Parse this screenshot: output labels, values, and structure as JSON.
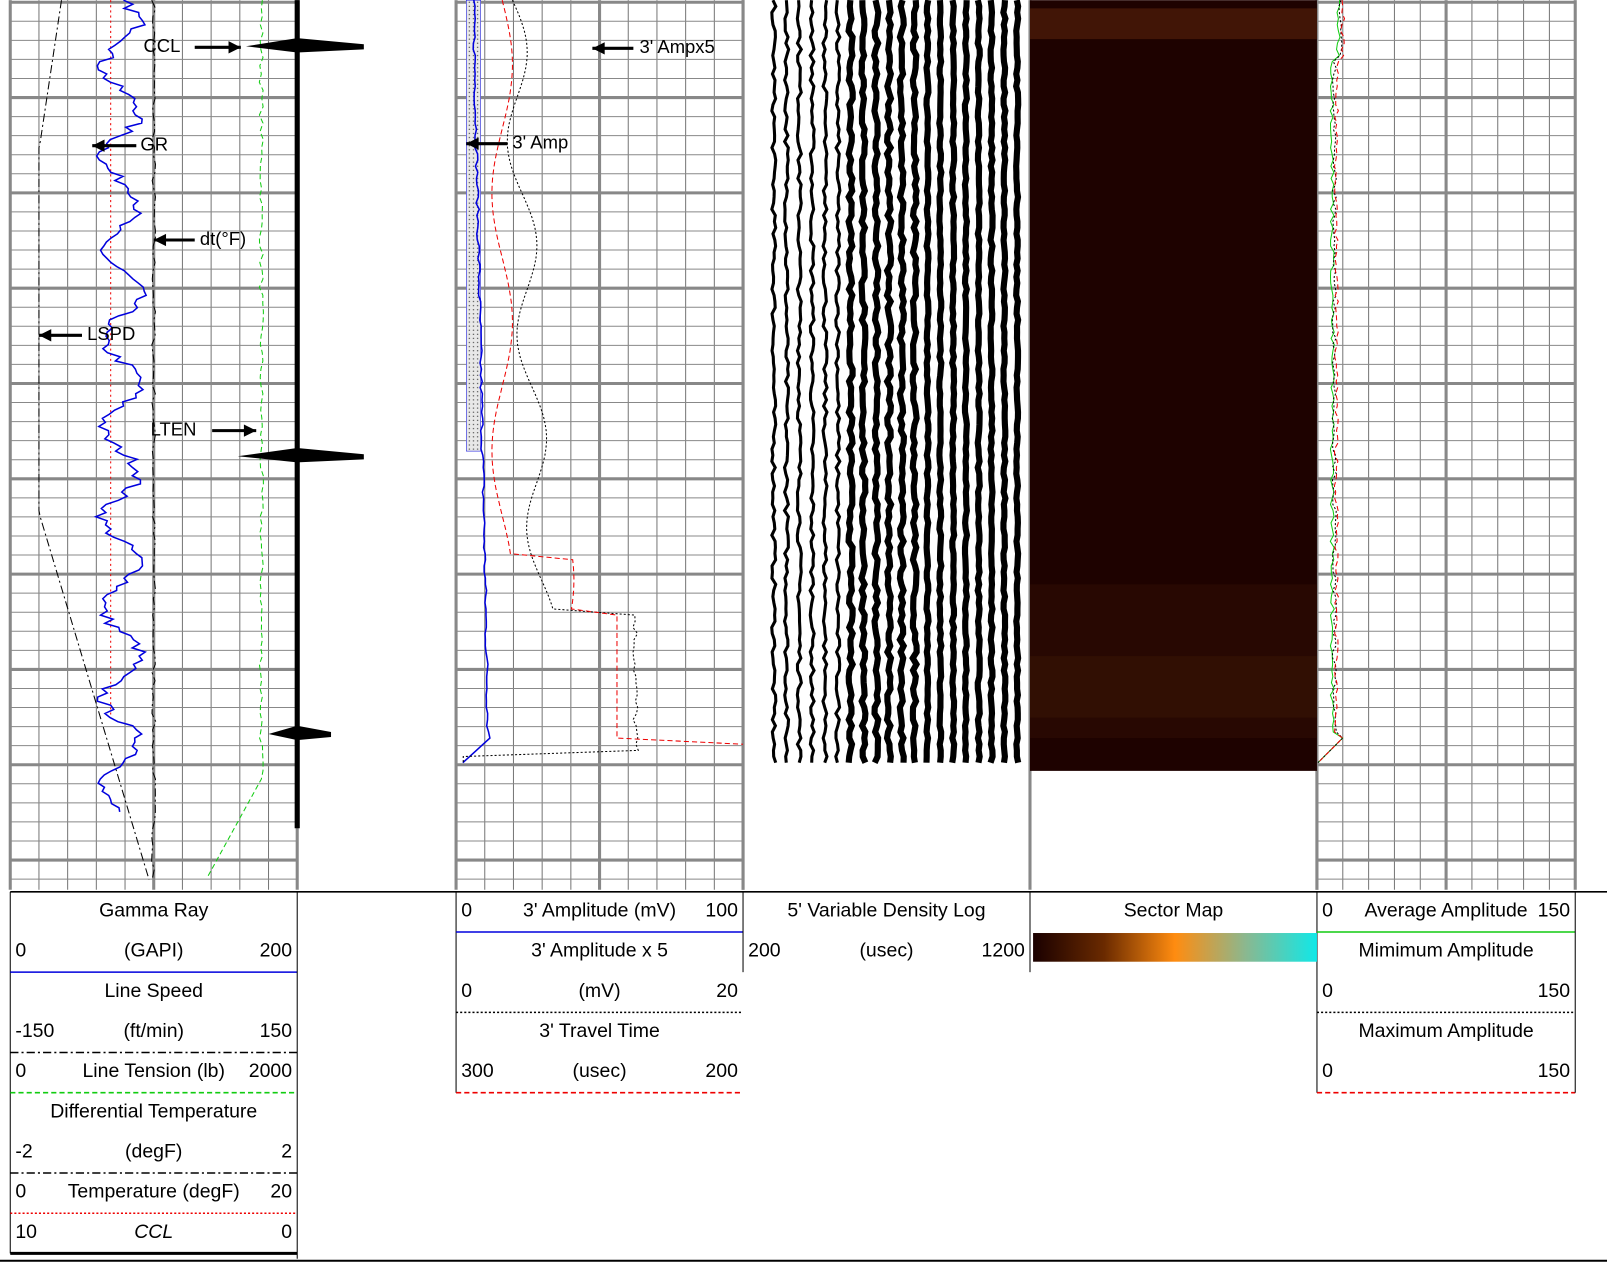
{
  "annotations": {
    "ccl": "CCL",
    "gr": "GR",
    "dt": "dt(°F)",
    "lspd": "LSPD",
    "lten": "LTEN",
    "amp5": "3' Ampx5",
    "amp": "3' Amp"
  },
  "header": {
    "track1": [
      {
        "center": "Gamma Ray"
      },
      {
        "left": "0",
        "center": "(GAPI)",
        "right": "200"
      },
      {
        "center": "Line Speed"
      },
      {
        "left": "-150",
        "center": "(ft/min)",
        "right": "150"
      },
      {
        "left": "0",
        "center": "Line Tension (lb)",
        "right": "2000"
      },
      {
        "center": "Differential Temperature"
      },
      {
        "left": "-2",
        "center": "(degF)",
        "right": "2"
      },
      {
        "left": "0",
        "center": "Temperature (degF)",
        "right": "20"
      },
      {
        "left": "10",
        "center": "CCL",
        "right": "0"
      }
    ],
    "track2": [
      {
        "left": "0",
        "center": "3' Amplitude (mV)",
        "right": "100"
      },
      {
        "center": "3' Amplitude x 5"
      },
      {
        "left": "0",
        "center": "(mV)",
        "right": "20"
      },
      {
        "center": "3' Travel Time"
      },
      {
        "left": "300",
        "center": "(usec)",
        "right": "200"
      }
    ],
    "vdl": [
      {
        "center": "5' Variable Density Log"
      },
      {
        "left": "200",
        "center": "(usec)",
        "right": "1200"
      }
    ],
    "sector": [
      {
        "center": "Sector Map"
      }
    ],
    "track4": [
      {
        "left": "0",
        "center": "Average Amplitude",
        "right": "150"
      },
      {
        "center": "Mimimum Amplitude"
      },
      {
        "left": "0",
        "right": "150"
      },
      {
        "center": "Maximum Amplitude"
      },
      {
        "left": "0",
        "right": "150"
      }
    ]
  }
}
